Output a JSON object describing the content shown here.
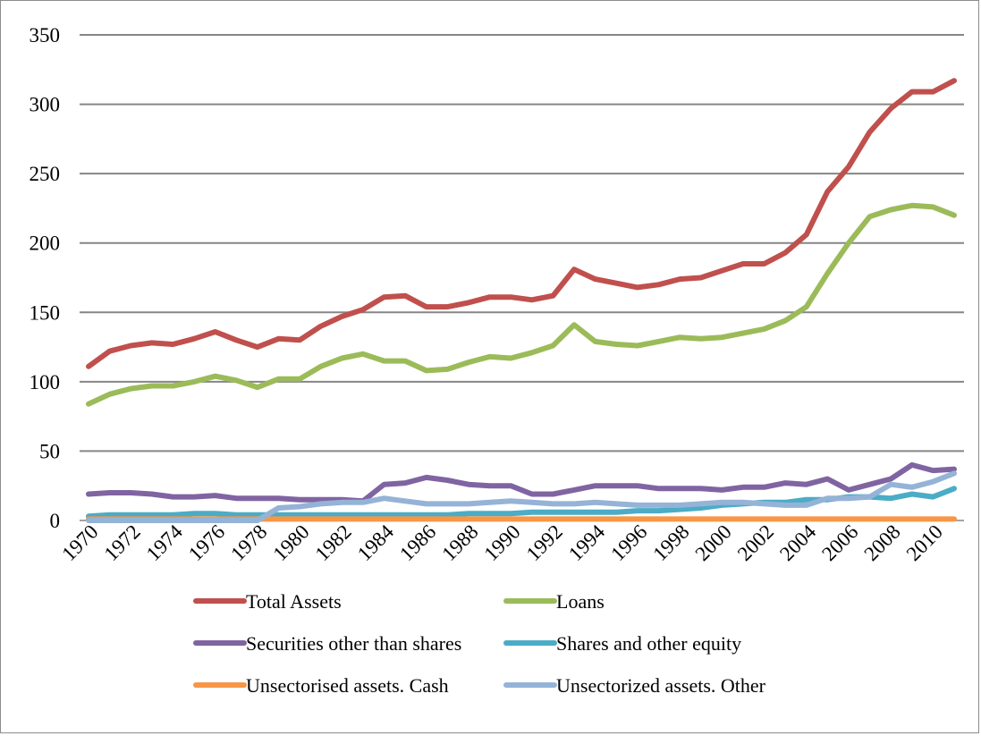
{
  "chart_data": {
    "type": "line",
    "title": "",
    "xlabel": "",
    "ylabel": "",
    "ylim": [
      0,
      350
    ],
    "yticks": [
      "0",
      "50",
      "100",
      "150",
      "200",
      "250",
      "300",
      "350"
    ],
    "xtick_labels": [
      "1970",
      "1972",
      "1974",
      "1976",
      "1978",
      "1980",
      "1982",
      "1984",
      "1986",
      "1988",
      "1990",
      "1992",
      "1994",
      "1996",
      "1998",
      "2000",
      "2002",
      "2004",
      "2006",
      "2008",
      "2010"
    ],
    "grid": "horizontal",
    "legend_position": "bottom",
    "x": [
      1970,
      1971,
      1972,
      1973,
      1974,
      1975,
      1976,
      1977,
      1978,
      1979,
      1980,
      1981,
      1982,
      1983,
      1984,
      1985,
      1986,
      1987,
      1988,
      1989,
      1990,
      1991,
      1992,
      1993,
      1994,
      1995,
      1996,
      1997,
      1998,
      1999,
      2000,
      2001,
      2002,
      2003,
      2004,
      2005,
      2006,
      2007,
      2008,
      2009,
      2010,
      2011
    ],
    "series": [
      {
        "name": "Total Assets",
        "color": "#c0504d",
        "values": [
          111,
          122,
          126,
          128,
          127,
          131,
          136,
          130,
          125,
          131,
          130,
          140,
          147,
          152,
          161,
          162,
          154,
          154,
          157,
          161,
          161,
          159,
          162,
          181,
          174,
          171,
          168,
          170,
          174,
          175,
          180,
          185,
          185,
          193,
          206,
          237,
          255,
          280,
          297,
          309,
          309,
          317
        ]
      },
      {
        "name": "Loans",
        "color": "#9bbb59",
        "values": [
          84,
          91,
          95,
          97,
          97,
          100,
          104,
          101,
          96,
          102,
          102,
          111,
          117,
          120,
          115,
          115,
          108,
          109,
          114,
          118,
          117,
          121,
          126,
          141,
          129,
          127,
          126,
          129,
          132,
          131,
          132,
          135,
          138,
          144,
          154,
          178,
          200,
          219,
          224,
          227,
          226,
          220
        ]
      },
      {
        "name": "Securities other than shares",
        "color": "#8064a2",
        "values": [
          19,
          20,
          20,
          19,
          17,
          17,
          18,
          16,
          16,
          16,
          15,
          15,
          15,
          14,
          26,
          27,
          31,
          29,
          26,
          25,
          25,
          19,
          19,
          22,
          25,
          25,
          25,
          23,
          23,
          23,
          22,
          24,
          24,
          27,
          26,
          30,
          22,
          26,
          30,
          40,
          36,
          37
        ]
      },
      {
        "name": "Shares and other equity",
        "color": "#4bacc6",
        "values": [
          3,
          4,
          4,
          4,
          4,
          5,
          5,
          4,
          4,
          4,
          4,
          4,
          4,
          4,
          4,
          4,
          4,
          4,
          5,
          5,
          5,
          6,
          6,
          6,
          6,
          6,
          7,
          7,
          8,
          9,
          11,
          12,
          13,
          13,
          15,
          15,
          17,
          17,
          16,
          19,
          17,
          23
        ]
      },
      {
        "name": "Unsectorised assets. Cash",
        "color": "#f79646",
        "values": [
          1,
          1,
          1,
          1,
          1,
          1,
          1,
          1,
          1,
          1,
          1,
          1,
          1,
          1,
          1,
          1,
          1,
          1,
          1,
          1,
          1,
          1,
          1,
          1,
          1,
          1,
          1,
          1,
          1,
          1,
          1,
          1,
          1,
          1,
          1,
          1,
          1,
          1,
          1,
          1,
          1,
          1
        ]
      },
      {
        "name": "Unsectorized assets. Other",
        "color": "#95b3d7",
        "values": [
          0,
          0,
          0,
          0,
          0,
          0,
          0,
          0,
          0,
          9,
          10,
          12,
          13,
          13,
          16,
          14,
          12,
          12,
          12,
          13,
          14,
          13,
          12,
          12,
          13,
          12,
          11,
          11,
          11,
          12,
          13,
          13,
          12,
          11,
          11,
          16,
          16,
          17,
          26,
          24,
          28,
          34
        ]
      }
    ]
  }
}
